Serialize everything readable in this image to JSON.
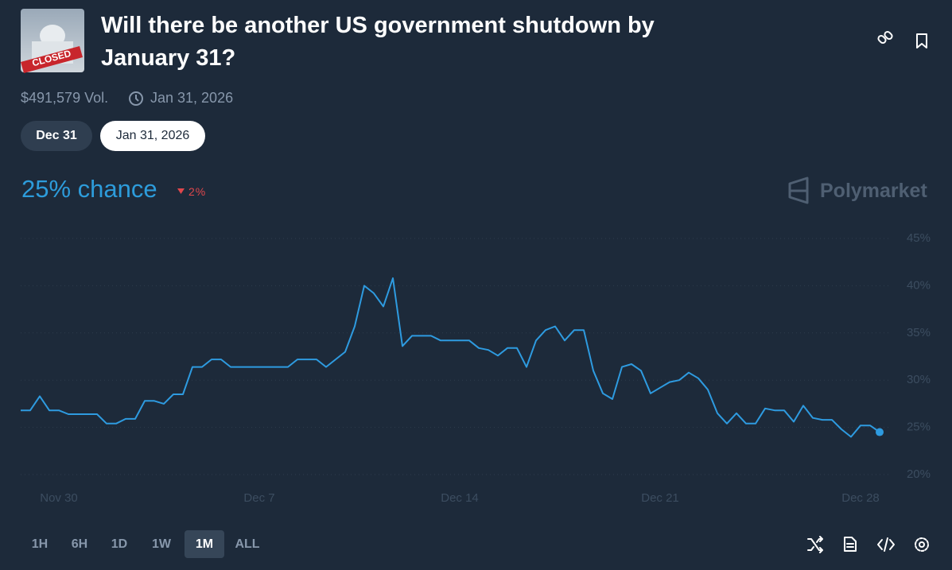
{
  "header": {
    "title": "Will there be another US government shutdown by January 31?",
    "image_label": "CLOSED",
    "volume": "$491,579 Vol.",
    "end_date": "Jan 31, 2026"
  },
  "date_tabs": [
    "Dec 31",
    "Jan 31, 2026"
  ],
  "summary": {
    "chance": "25% chance",
    "change": "2%",
    "brand": "Polymarket"
  },
  "range_buttons": [
    "1H",
    "6H",
    "1D",
    "1W",
    "1M",
    "ALL"
  ],
  "chart_data": {
    "type": "line",
    "color": "#2e9be0",
    "values": [
      26.8,
      26.8,
      28.3,
      26.8,
      26.8,
      26.4,
      26.4,
      26.4,
      26.4,
      25.4,
      25.4,
      25.9,
      25.9,
      27.8,
      27.8,
      27.5,
      28.5,
      28.5,
      31.4,
      31.4,
      32.2,
      32.2,
      31.4,
      31.4,
      31.4,
      31.4,
      31.4,
      31.4,
      31.4,
      32.2,
      32.2,
      32.2,
      31.4,
      32.2,
      33.0,
      35.7,
      40.0,
      39.2,
      37.8,
      40.8,
      33.6,
      34.7,
      34.7,
      34.7,
      34.2,
      34.2,
      34.2,
      34.2,
      33.4,
      33.2,
      32.6,
      33.4,
      33.4,
      31.4,
      34.2,
      35.3,
      35.7,
      34.2,
      35.3,
      35.3,
      31.0,
      28.6,
      28.0,
      31.4,
      31.7,
      31.0,
      28.6,
      29.2,
      29.8,
      30.0,
      30.8,
      30.2,
      29.0,
      26.5,
      25.4,
      26.5,
      25.4,
      25.4,
      27.0,
      26.8,
      26.8,
      25.6,
      27.3,
      26.0,
      25.8,
      25.8,
      24.8,
      24.0,
      25.2,
      25.2,
      24.5
    ],
    "xticks": [
      {
        "value": 4,
        "label": "Nov 30"
      },
      {
        "value": 25,
        "label": "Dec 7"
      },
      {
        "value": 46,
        "label": "Dec 14"
      },
      {
        "value": 67,
        "label": "Dec 21"
      },
      {
        "value": 88,
        "label": "Dec 28"
      }
    ],
    "ylim": [
      20,
      45
    ],
    "yticks": [
      {
        "value": 20,
        "label": "20%"
      },
      {
        "value": 25,
        "label": "25%"
      },
      {
        "value": 30,
        "label": "30%"
      },
      {
        "value": 35,
        "label": "35%"
      },
      {
        "value": 40,
        "label": "40%"
      },
      {
        "value": 45,
        "label": "45%"
      }
    ],
    "grid": true
  }
}
